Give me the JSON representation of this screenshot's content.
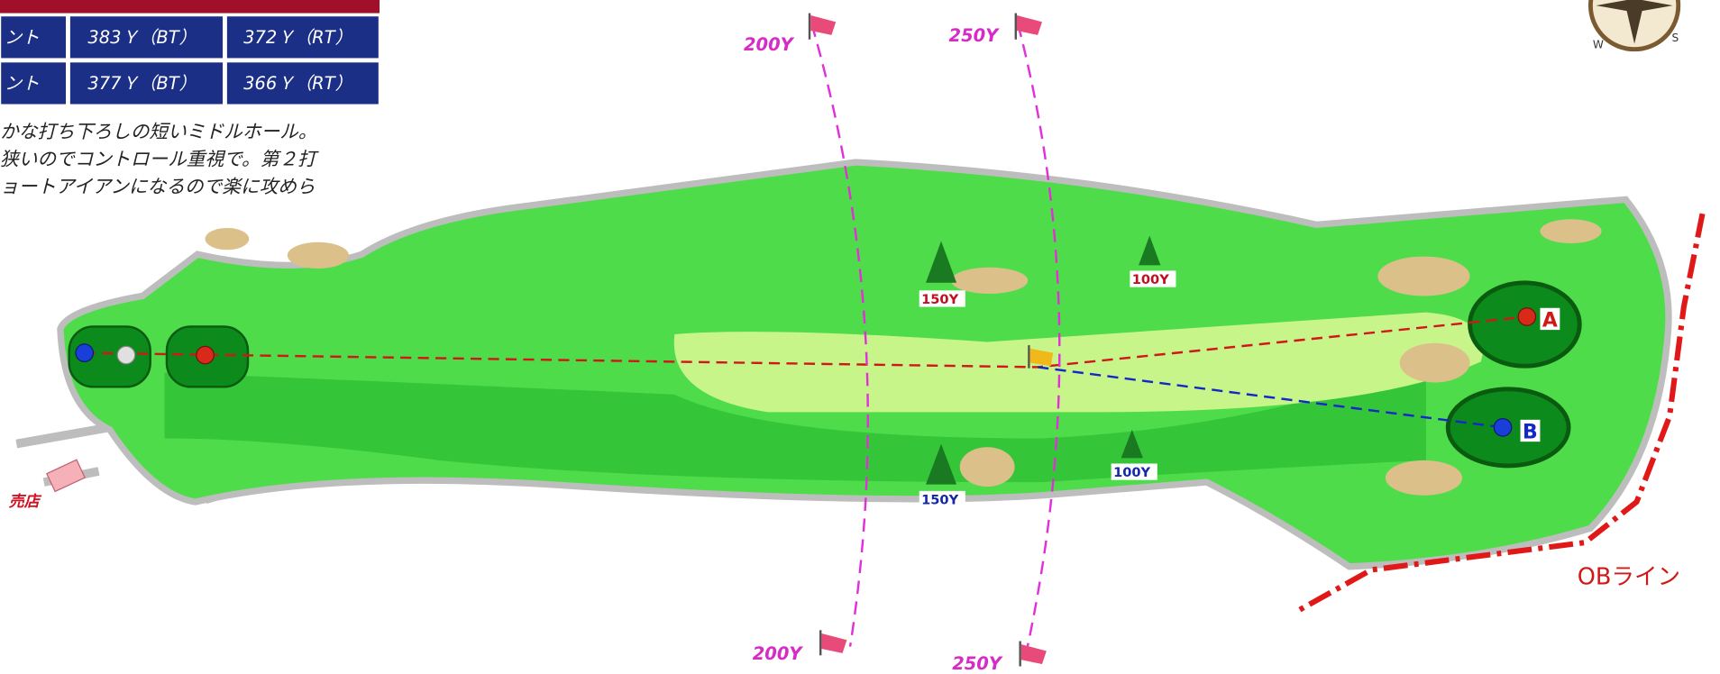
{
  "table": {
    "rows": [
      [
        "ント",
        "383Ｙ（BT）",
        "372Ｙ（RT）"
      ],
      [
        "ント",
        "377Ｙ（BT）",
        "366Ｙ（RT）"
      ]
    ]
  },
  "description": [
    "かな打ち下ろしの短いミドルホール。",
    "狭いのでコントロール重視で。第２打",
    "ョートアイアンになるので楽に攻めら"
  ],
  "distance_lines": {
    "top": [
      "200Y",
      "250Y"
    ],
    "bottom": [
      "200Y",
      "250Y"
    ]
  },
  "markers": {
    "upper": [
      "150Y",
      "100Y"
    ],
    "lower": [
      "150Y",
      "100Y"
    ]
  },
  "greens": [
    "A",
    "B"
  ],
  "shop": "売店",
  "ob_line": "OBライン",
  "compass": [
    "W",
    "S"
  ]
}
